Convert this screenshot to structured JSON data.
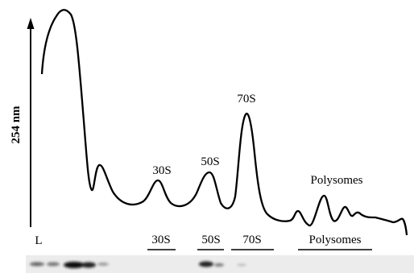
{
  "axis_label": "254 nm",
  "lane_label": "L",
  "peak_labels": [
    "30S",
    "50S",
    "70S",
    "Polysomes"
  ],
  "fraction_labels": [
    "30S",
    "50S",
    "70S",
    "Polysomes"
  ]
}
